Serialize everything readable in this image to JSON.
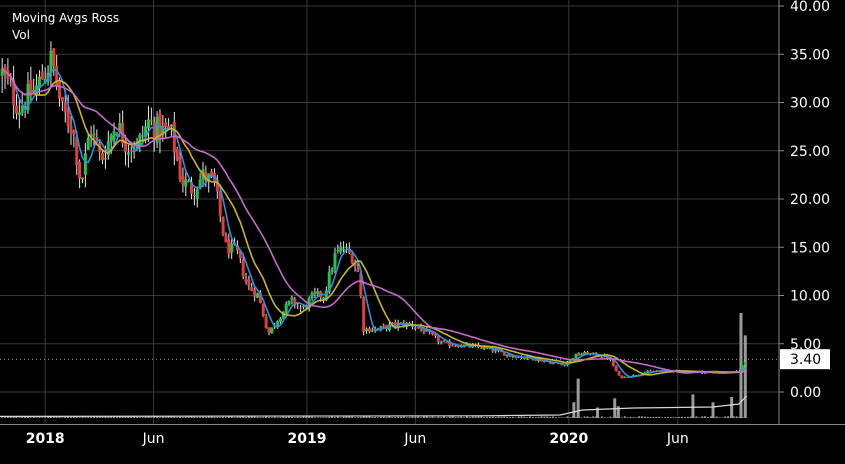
{
  "legend": {
    "study_label": "Moving Avgs Ross",
    "volume_label": "Vol"
  },
  "colors": {
    "background": "#000000",
    "grid": "#3a3a3a",
    "up": "#22c44a",
    "down": "#e0403c",
    "ma_short": "#2f8fde",
    "ma_mid": "#c8b431",
    "ma_long": "#c46ac8",
    "volume": "#9a9a9a",
    "volume_avg": "#d8d8d8",
    "price_box_bg": "#ffffff",
    "price_box_text": "#000000"
  },
  "chart_data": {
    "type": "candlestick",
    "title": "",
    "ylim": [
      -2.6,
      40
    ],
    "y_ticks": [
      "40.00",
      "35.00",
      "30.00",
      "25.00",
      "20.00",
      "15.00",
      "10.00",
      "5.00",
      "0.00"
    ],
    "x_ticks": [
      "2018",
      "Jun",
      "2019",
      "Jun",
      "2020",
      "Jun"
    ],
    "x_tick_dates": [
      "2018-01-01",
      "2018-06-01",
      "2019-01-01",
      "2019-06-01",
      "2020-01-01",
      "2020-06-01"
    ],
    "x_range": [
      "2017-10-30",
      "2020-10-20"
    ],
    "last_price_label": "3.40",
    "grid": true,
    "legend": "top-left",
    "price_keyframes": [
      [
        "2017-11-02",
        33.0
      ],
      [
        "2017-11-25",
        29.5
      ],
      [
        "2017-12-20",
        31.5
      ],
      [
        "2018-01-10",
        34.5
      ],
      [
        "2018-01-25",
        29.0
      ],
      [
        "2018-02-08",
        27.5
      ],
      [
        "2018-02-20",
        21.5
      ],
      [
        "2018-03-05",
        27.5
      ],
      [
        "2018-03-20",
        24.0
      ],
      [
        "2018-04-10",
        28.0
      ],
      [
        "2018-04-25",
        25.5
      ],
      [
        "2018-05-10",
        25.5
      ],
      [
        "2018-05-25",
        28.0
      ],
      [
        "2018-06-10",
        27.0
      ],
      [
        "2018-06-25",
        27.0
      ],
      [
        "2018-07-10",
        22.0
      ],
      [
        "2018-07-25",
        21.0
      ],
      [
        "2018-08-10",
        22.5
      ],
      [
        "2018-08-25",
        21.5
      ],
      [
        "2018-09-10",
        15.0
      ],
      [
        "2018-09-25",
        14.5
      ],
      [
        "2018-10-10",
        11.0
      ],
      [
        "2018-10-25",
        10.0
      ],
      [
        "2018-11-08",
        6.0
      ],
      [
        "2018-11-25",
        8.0
      ],
      [
        "2018-12-10",
        9.5
      ],
      [
        "2018-12-25",
        8.5
      ],
      [
        "2019-01-10",
        10.0
      ],
      [
        "2019-01-25",
        10.0
      ],
      [
        "2019-02-08",
        14.0
      ],
      [
        "2019-02-20",
        15.0
      ],
      [
        "2019-03-05",
        14.0
      ],
      [
        "2019-03-15",
        12.0
      ],
      [
        "2019-03-20",
        6.5
      ],
      [
        "2019-04-10",
        6.5
      ],
      [
        "2019-05-05",
        7.0
      ],
      [
        "2019-05-25",
        7.0
      ],
      [
        "2019-06-10",
        6.5
      ],
      [
        "2019-07-10",
        5.0
      ],
      [
        "2019-08-10",
        4.8
      ],
      [
        "2019-09-10",
        4.5
      ],
      [
        "2019-10-10",
        3.8
      ],
      [
        "2019-11-10",
        3.5
      ],
      [
        "2019-12-10",
        3.0
      ],
      [
        "2019-12-25",
        2.8
      ],
      [
        "2020-01-10",
        3.8
      ],
      [
        "2020-01-25",
        4.0
      ],
      [
        "2020-02-10",
        3.8
      ],
      [
        "2020-02-25",
        3.6
      ],
      [
        "2020-03-12",
        1.5
      ],
      [
        "2020-03-25",
        1.6
      ],
      [
        "2020-04-20",
        2.1
      ],
      [
        "2020-05-20",
        2.2
      ],
      [
        "2020-06-20",
        2.1
      ],
      [
        "2020-07-20",
        2.0
      ],
      [
        "2020-08-10",
        2.0
      ],
      [
        "2020-08-25",
        2.1
      ],
      [
        "2020-09-05",
        3.4
      ]
    ],
    "volume_spikes": [
      [
        "2020-01-08",
        1.2
      ],
      [
        "2020-01-14",
        3.0
      ],
      [
        "2020-02-10",
        0.8
      ],
      [
        "2020-03-05",
        1.5
      ],
      [
        "2020-03-10",
        0.9
      ],
      [
        "2020-06-22",
        1.8
      ],
      [
        "2020-07-20",
        1.2
      ],
      [
        "2020-08-15",
        1.6
      ],
      [
        "2020-08-28",
        8.0
      ],
      [
        "2020-09-03",
        6.3
      ]
    ],
    "series": [
      {
        "values": "ma_short"
      },
      {
        "values": "ma_mid"
      },
      {
        "values": "ma_long"
      }
    ]
  }
}
